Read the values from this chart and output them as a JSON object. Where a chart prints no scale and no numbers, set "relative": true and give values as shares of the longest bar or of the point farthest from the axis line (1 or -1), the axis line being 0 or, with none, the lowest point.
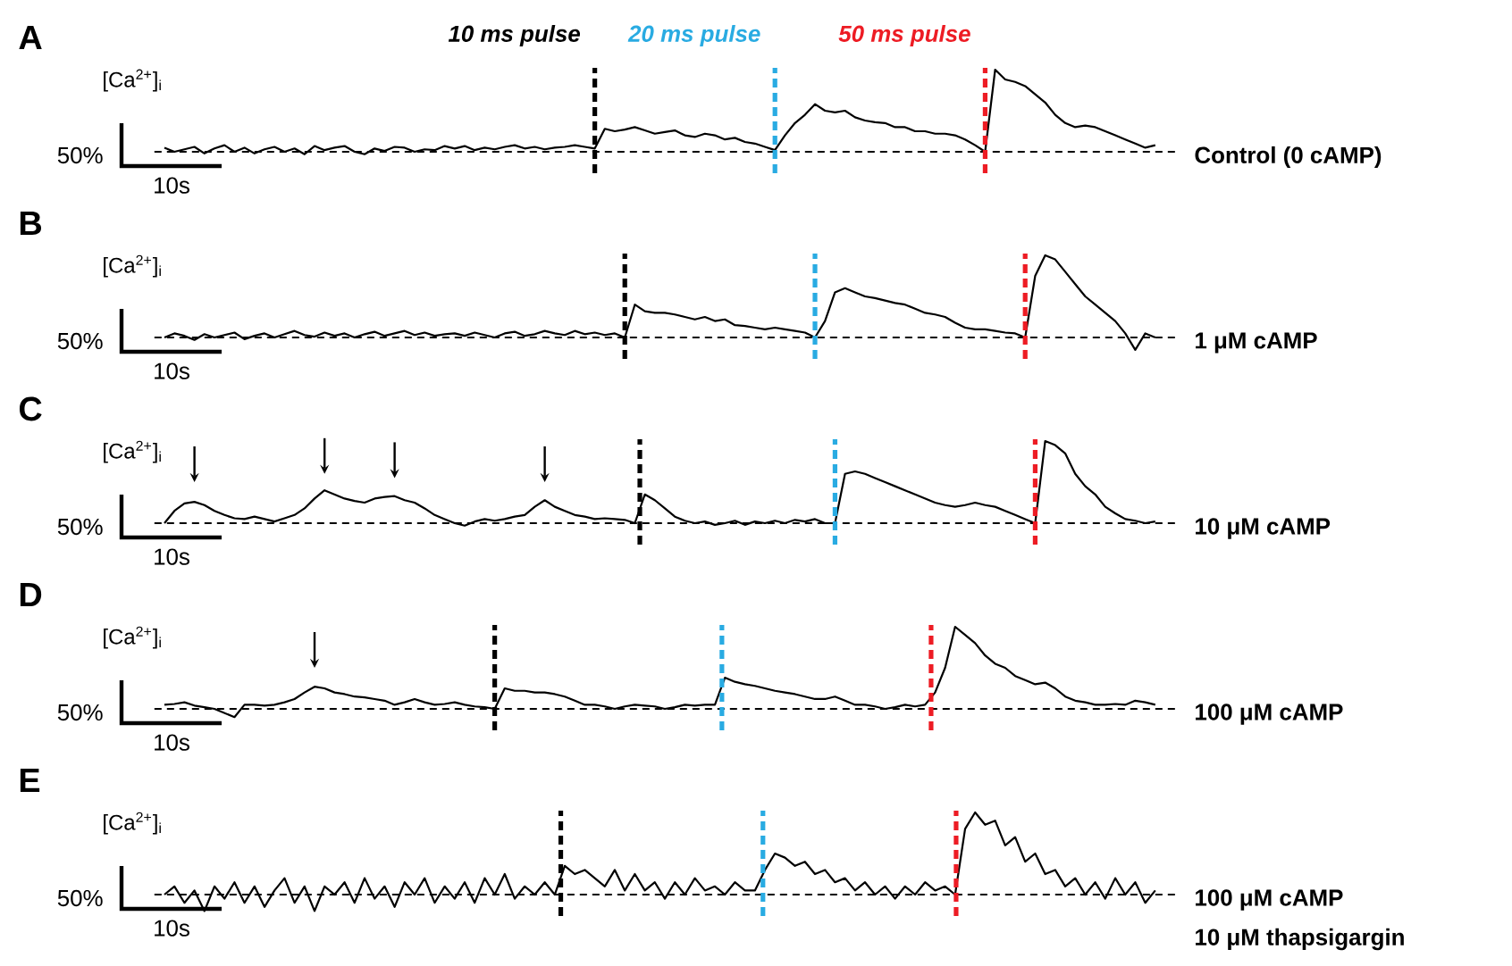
{
  "chart_data": [
    {
      "type": "line",
      "title": "A",
      "ylabel": "[Ca$^{2+}$]$_{i}$",
      "color": "#000000",
      "relative": true,
      "tick_labels": false,
      "categories": [
        null,
        null,
        null,
        null,
        null,
        null,
        null,
        null,
        null,
        null,
        null,
        null,
        null,
        null,
        null,
        null,
        null,
        null,
        null,
        null,
        null,
        null,
        null,
        null,
        null,
        null,
        null,
        null,
        null,
        null,
        null,
        null,
        null,
        null,
        null,
        null,
        null,
        null,
        null,
        null,
        null,
        null,
        null,
        null,
        null,
        null,
        null,
        null,
        null,
        null,
        null,
        null,
        null,
        null,
        null,
        null,
        null,
        null,
        null,
        null,
        null,
        null,
        null,
        null,
        null,
        null,
        null,
        null,
        null,
        null,
        null,
        null,
        null,
        null,
        null,
        null,
        null,
        null,
        null,
        null,
        null,
        null,
        null,
        null,
        null,
        null,
        null,
        null,
        null,
        null,
        null,
        null,
        null,
        null,
        null,
        null,
        null,
        null,
        null,
        null
      ],
      "values": [
        0.05,
        0.0,
        0.03,
        0.06,
        -0.02,
        0.04,
        0.08,
        0.0,
        0.05,
        -0.02,
        0.03,
        0.06,
        0.0,
        0.04,
        -0.03,
        0.07,
        0.02,
        0.05,
        0.07,
        0.0,
        -0.03,
        0.04,
        0.01,
        0.06,
        0.05,
        0.0,
        0.03,
        0.02,
        0.07,
        0.04,
        0.07,
        0.02,
        0.05,
        0.03,
        0.06,
        0.08,
        0.04,
        0.06,
        0.03,
        0.05,
        0.06,
        0.08,
        0.06,
        0.04,
        0.28,
        0.25,
        0.27,
        0.3,
        0.26,
        0.22,
        0.24,
        0.26,
        0.2,
        0.18,
        0.22,
        0.2,
        0.15,
        0.17,
        0.12,
        0.1,
        0.06,
        0.02,
        0.2,
        0.35,
        0.45,
        0.58,
        0.5,
        0.48,
        0.5,
        0.42,
        0.38,
        0.36,
        0.35,
        0.3,
        0.3,
        0.25,
        0.25,
        0.22,
        0.22,
        0.2,
        0.15,
        0.08,
        0.0,
        1.0,
        0.88,
        0.85,
        0.8,
        0.7,
        0.6,
        0.45,
        0.35,
        0.3,
        0.32,
        0.3,
        0.25,
        0.2,
        0.15,
        0.1,
        0.05,
        0.08
      ],
      "ref_lines": [
        {
          "axis": "y",
          "value": 0,
          "color": "#000000",
          "line_style": "dashed"
        }
      ],
      "annotations": [
        "10 ms pulse",
        "20 ms pulse",
        "50 ms pulse",
        "50%",
        "10s",
        "Control (0 cAMP)"
      ]
    },
    {
      "type": "line",
      "title": "B",
      "ylabel": "[Ca$^{2+}$]$_{i}$",
      "color": "#000000",
      "relative": true,
      "tick_labels": false,
      "categories": [
        null,
        null,
        null,
        null,
        null,
        null,
        null,
        null,
        null,
        null,
        null,
        null,
        null,
        null,
        null,
        null,
        null,
        null,
        null,
        null,
        null,
        null,
        null,
        null,
        null,
        null,
        null,
        null,
        null,
        null,
        null,
        null,
        null,
        null,
        null,
        null,
        null,
        null,
        null,
        null,
        null,
        null,
        null,
        null,
        null,
        null,
        null,
        null,
        null,
        null,
        null,
        null,
        null,
        null,
        null,
        null,
        null,
        null,
        null,
        null,
        null,
        null,
        null,
        null,
        null,
        null,
        null,
        null,
        null,
        null,
        null,
        null,
        null,
        null,
        null,
        null,
        null,
        null,
        null,
        null,
        null,
        null,
        null,
        null,
        null,
        null,
        null,
        null,
        null,
        null,
        null,
        null,
        null,
        null,
        null,
        null,
        null,
        null,
        null,
        null
      ],
      "values": [
        0.0,
        0.05,
        0.02,
        -0.03,
        0.04,
        0.0,
        0.03,
        0.06,
        -0.02,
        0.02,
        0.05,
        0.0,
        0.04,
        0.08,
        0.03,
        0.01,
        0.06,
        0.02,
        0.05,
        0.0,
        0.04,
        0.07,
        0.02,
        0.05,
        0.08,
        0.03,
        0.06,
        0.02,
        0.04,
        0.05,
        0.02,
        0.06,
        0.03,
        0.0,
        0.05,
        0.07,
        0.02,
        0.04,
        0.08,
        0.05,
        0.03,
        0.08,
        0.04,
        0.06,
        0.03,
        0.05,
        0.0,
        0.4,
        0.32,
        0.3,
        0.3,
        0.28,
        0.25,
        0.22,
        0.25,
        0.2,
        0.22,
        0.15,
        0.14,
        0.12,
        0.1,
        0.12,
        0.1,
        0.08,
        0.06,
        0.0,
        0.2,
        0.55,
        0.6,
        0.55,
        0.5,
        0.48,
        0.45,
        0.42,
        0.4,
        0.35,
        0.3,
        0.28,
        0.25,
        0.18,
        0.12,
        0.1,
        0.1,
        0.08,
        0.06,
        0.05,
        0.0,
        0.75,
        1.0,
        0.95,
        0.8,
        0.65,
        0.5,
        0.4,
        0.3,
        0.2,
        0.05,
        -0.15,
        0.05,
        0.0
      ],
      "ref_lines": [
        {
          "axis": "y",
          "value": 0,
          "color": "#000000",
          "line_style": "dashed"
        }
      ],
      "annotations": [
        "50%",
        "10s",
        "1 μM cAMP"
      ]
    },
    {
      "type": "line",
      "title": "C",
      "ylabel": "[Ca$^{2+}$]$_{i}$",
      "color": "#000000",
      "relative": true,
      "tick_labels": false,
      "categories": [
        null,
        null,
        null,
        null,
        null,
        null,
        null,
        null,
        null,
        null,
        null,
        null,
        null,
        null,
        null,
        null,
        null,
        null,
        null,
        null,
        null,
        null,
        null,
        null,
        null,
        null,
        null,
        null,
        null,
        null,
        null,
        null,
        null,
        null,
        null,
        null,
        null,
        null,
        null,
        null,
        null,
        null,
        null,
        null,
        null,
        null,
        null,
        null,
        null,
        null,
        null,
        null,
        null,
        null,
        null,
        null,
        null,
        null,
        null,
        null,
        null,
        null,
        null,
        null,
        null,
        null,
        null,
        null,
        null,
        null,
        null,
        null,
        null,
        null,
        null,
        null,
        null,
        null,
        null,
        null,
        null,
        null,
        null,
        null,
        null,
        null,
        null,
        null,
        null,
        null,
        null,
        null,
        null,
        null,
        null,
        null,
        null,
        null,
        null,
        null
      ],
      "values": [
        0.0,
        0.15,
        0.24,
        0.26,
        0.22,
        0.15,
        0.1,
        0.06,
        0.05,
        0.08,
        0.05,
        0.02,
        0.06,
        0.1,
        0.18,
        0.3,
        0.4,
        0.35,
        0.3,
        0.27,
        0.25,
        0.3,
        0.32,
        0.33,
        0.28,
        0.25,
        0.18,
        0.1,
        0.05,
        0.0,
        -0.03,
        0.02,
        0.05,
        0.03,
        0.05,
        0.08,
        0.1,
        0.2,
        0.28,
        0.2,
        0.15,
        0.1,
        0.08,
        0.05,
        0.06,
        0.05,
        0.04,
        0.0,
        0.35,
        0.28,
        0.18,
        0.08,
        0.03,
        0.0,
        0.02,
        -0.02,
        0.0,
        0.03,
        -0.02,
        0.02,
        0.0,
        0.03,
        0.0,
        0.04,
        0.02,
        0.05,
        0.0,
        0.0,
        0.6,
        0.63,
        0.6,
        0.55,
        0.5,
        0.45,
        0.4,
        0.35,
        0.3,
        0.25,
        0.22,
        0.2,
        0.22,
        0.25,
        0.22,
        0.2,
        0.15,
        0.1,
        0.05,
        0.0,
        1.0,
        0.95,
        0.85,
        0.6,
        0.45,
        0.35,
        0.2,
        0.12,
        0.05,
        0.03,
        0.0,
        0.02
      ],
      "ref_lines": [
        {
          "axis": "y",
          "value": 0,
          "color": "#000000",
          "line_style": "dashed"
        }
      ],
      "annotations": [
        "50%",
        "10s",
        "10 μM cAMP"
      ]
    },
    {
      "type": "line",
      "title": "D",
      "ylabel": "[Ca$^{2+}$]$_{i}$",
      "color": "#000000",
      "relative": true,
      "tick_labels": false,
      "categories": [
        null,
        null,
        null,
        null,
        null,
        null,
        null,
        null,
        null,
        null,
        null,
        null,
        null,
        null,
        null,
        null,
        null,
        null,
        null,
        null,
        null,
        null,
        null,
        null,
        null,
        null,
        null,
        null,
        null,
        null,
        null,
        null,
        null,
        null,
        null,
        null,
        null,
        null,
        null,
        null,
        null,
        null,
        null,
        null,
        null,
        null,
        null,
        null,
        null,
        null,
        null,
        null,
        null,
        null,
        null,
        null,
        null,
        null,
        null,
        null,
        null,
        null,
        null,
        null,
        null,
        null,
        null,
        null,
        null,
        null,
        null,
        null,
        null,
        null,
        null,
        null,
        null,
        null,
        null,
        null,
        null,
        null,
        null,
        null,
        null,
        null,
        null,
        null,
        null,
        null,
        null,
        null,
        null,
        null,
        null,
        null,
        null,
        null,
        null,
        null
      ],
      "values": [
        0.05,
        0.06,
        0.08,
        0.04,
        0.02,
        0.0,
        -0.05,
        -0.1,
        0.05,
        0.05,
        0.04,
        0.05,
        0.08,
        0.12,
        0.2,
        0.27,
        0.25,
        0.2,
        0.18,
        0.15,
        0.14,
        0.12,
        0.1,
        0.05,
        0.08,
        0.12,
        0.08,
        0.05,
        0.06,
        0.08,
        0.05,
        0.03,
        0.02,
        0.0,
        0.25,
        0.22,
        0.22,
        0.2,
        0.2,
        0.18,
        0.15,
        0.1,
        0.05,
        0.05,
        0.03,
        0.0,
        0.03,
        0.05,
        0.04,
        0.03,
        0.0,
        0.02,
        0.05,
        0.04,
        0.05,
        0.05,
        0.38,
        0.33,
        0.3,
        0.28,
        0.25,
        0.22,
        0.2,
        0.18,
        0.15,
        0.12,
        0.12,
        0.15,
        0.1,
        0.05,
        0.05,
        0.03,
        0.0,
        0.02,
        0.05,
        0.03,
        0.05,
        0.2,
        0.5,
        1.0,
        0.9,
        0.8,
        0.65,
        0.55,
        0.5,
        0.4,
        0.35,
        0.3,
        0.32,
        0.25,
        0.15,
        0.1,
        0.08,
        0.05,
        0.05,
        0.06,
        0.05,
        0.1,
        0.08,
        0.05
      ],
      "ref_lines": [
        {
          "axis": "y",
          "value": 0,
          "color": "#000000",
          "line_style": "dashed"
        }
      ],
      "annotations": [
        "50%",
        "10s",
        "100 μM cAMP"
      ]
    },
    {
      "type": "line",
      "title": "E",
      "ylabel": "[Ca$^{2+}$]$_{i}$",
      "color": "#000000",
      "relative": true,
      "tick_labels": false,
      "categories": [
        null,
        null,
        null,
        null,
        null,
        null,
        null,
        null,
        null,
        null,
        null,
        null,
        null,
        null,
        null,
        null,
        null,
        null,
        null,
        null,
        null,
        null,
        null,
        null,
        null,
        null,
        null,
        null,
        null,
        null,
        null,
        null,
        null,
        null,
        null,
        null,
        null,
        null,
        null,
        null,
        null,
        null,
        null,
        null,
        null,
        null,
        null,
        null,
        null,
        null,
        null,
        null,
        null,
        null,
        null,
        null,
        null,
        null,
        null,
        null,
        null,
        null,
        null,
        null,
        null,
        null,
        null,
        null,
        null,
        null,
        null,
        null,
        null,
        null,
        null,
        null,
        null,
        null,
        null,
        null,
        null,
        null,
        null,
        null,
        null,
        null,
        null,
        null,
        null,
        null,
        null,
        null,
        null,
        null,
        null,
        null,
        null,
        null,
        null,
        null
      ],
      "values": [
        0.0,
        0.1,
        -0.1,
        0.05,
        -0.2,
        0.1,
        -0.05,
        0.15,
        -0.1,
        0.1,
        -0.15,
        0.05,
        0.2,
        -0.1,
        0.1,
        -0.2,
        0.1,
        0.0,
        0.15,
        -0.1,
        0.2,
        -0.05,
        0.1,
        -0.15,
        0.15,
        0.0,
        0.2,
        -0.1,
        0.1,
        -0.05,
        0.15,
        -0.1,
        0.2,
        0.0,
        0.25,
        -0.05,
        0.1,
        0.0,
        0.15,
        0.0,
        0.35,
        0.25,
        0.3,
        0.2,
        0.1,
        0.3,
        0.05,
        0.25,
        0.05,
        0.15,
        -0.05,
        0.15,
        0.0,
        0.2,
        0.05,
        0.1,
        0.0,
        0.15,
        0.05,
        0.05,
        0.3,
        0.5,
        0.45,
        0.35,
        0.4,
        0.25,
        0.3,
        0.15,
        0.2,
        0.05,
        0.15,
        0.0,
        0.1,
        -0.05,
        0.1,
        0.0,
        0.15,
        0.05,
        0.1,
        0.0,
        0.8,
        1.0,
        0.85,
        0.9,
        0.6,
        0.7,
        0.4,
        0.5,
        0.25,
        0.3,
        0.1,
        0.2,
        0.0,
        0.15,
        -0.05,
        0.2,
        0.0,
        0.15,
        -0.1,
        0.05
      ],
      "ref_lines": [
        {
          "axis": "y",
          "value": 0,
          "color": "#000000",
          "line_style": "dashed"
        }
      ],
      "annotations": [
        "50%",
        "10s",
        "100 μM cAMP",
        "10 μM thapsigargin"
      ]
    }
  ]
}
